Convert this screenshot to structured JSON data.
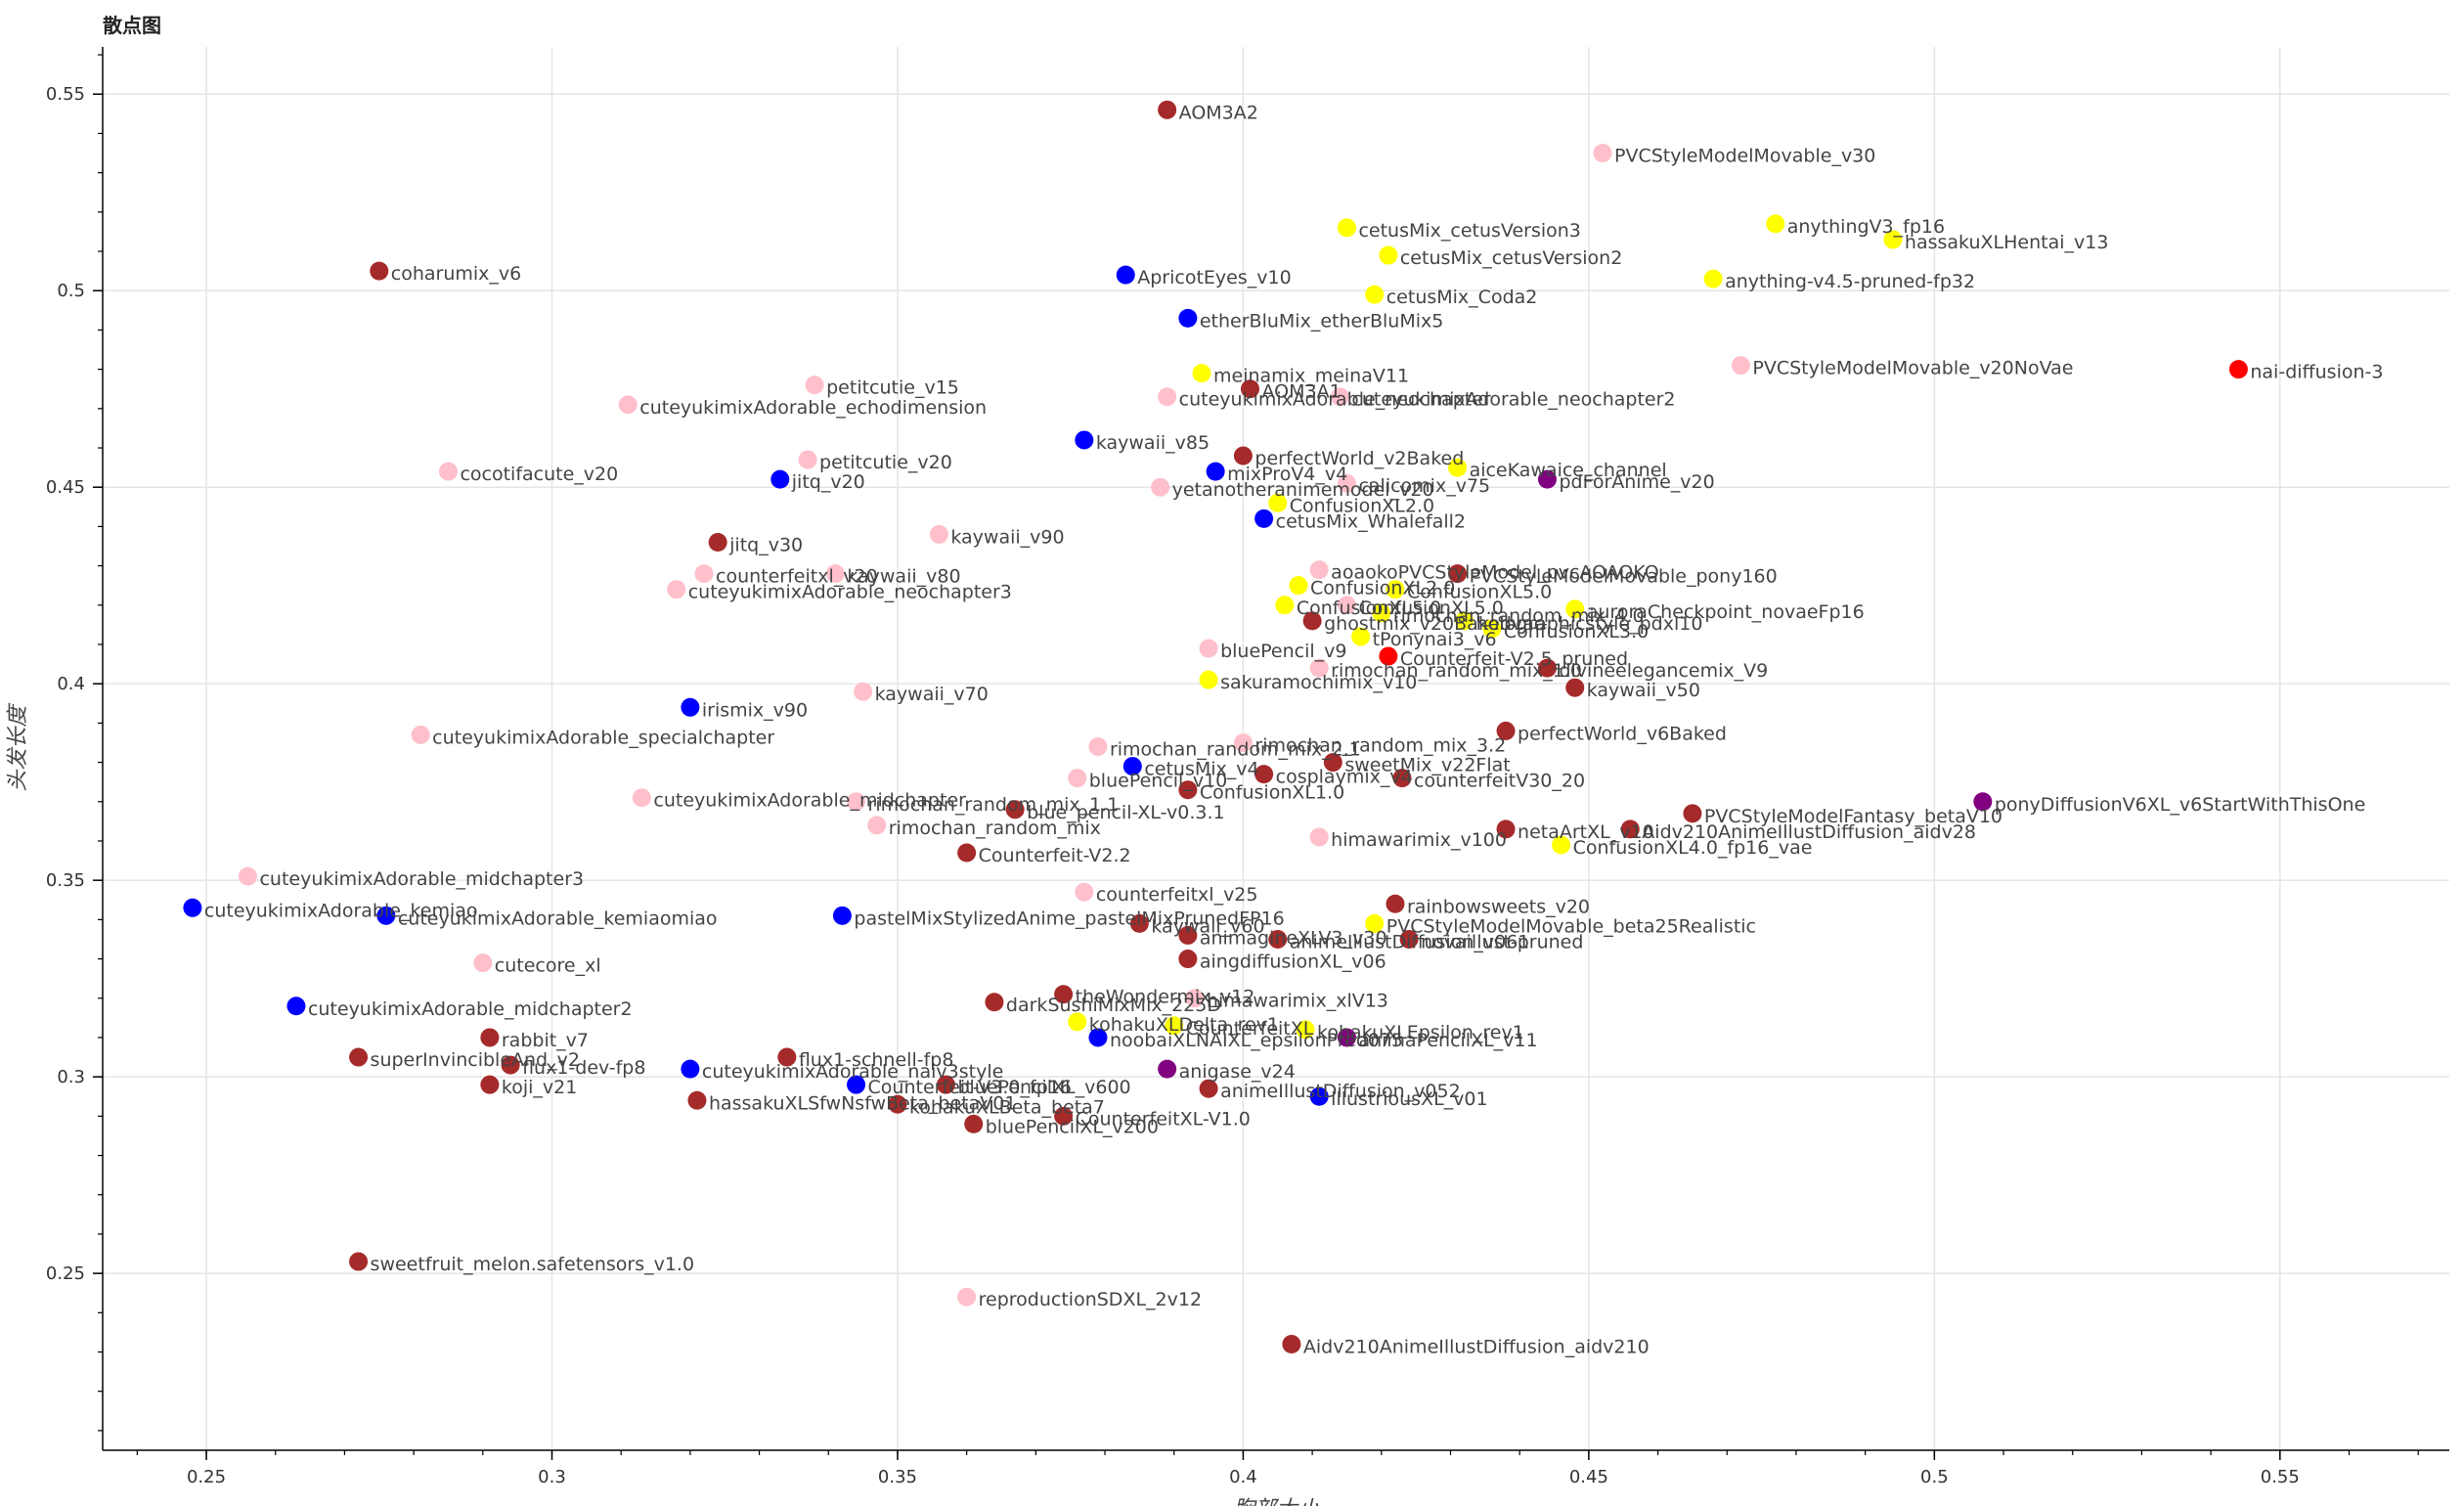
{
  "title": "散点图",
  "chart_data": {
    "type": "scatter",
    "title": "散点图",
    "xlabel": "胸部大小",
    "ylabel": "头发长度",
    "xlim": [
      0.235,
      0.5745
    ],
    "ylim": [
      0.205,
      0.562
    ],
    "xticks": [
      0.25,
      0.3,
      0.35,
      0.4,
      0.45,
      0.5,
      0.55
    ],
    "xtick_labels": [
      "0.25",
      "0.3",
      "0.35",
      "0.4",
      "0.45",
      "0.5",
      "0.55"
    ],
    "yticks": [
      0.25,
      0.3,
      0.35,
      0.4,
      0.45,
      0.5,
      0.55
    ],
    "ytick_labels": [
      "0.25",
      "0.3",
      "0.35",
      "0.4",
      "0.45",
      "0.5",
      "0.55"
    ],
    "grid": true,
    "colors": {
      "brown": "#a52a2a",
      "blue": "#0000ff",
      "pink": "#ffc0cb",
      "yellow": "#ffff00",
      "red": "#ff0000",
      "purple": "#800080"
    },
    "points": [
      {
        "label": "AOM3A2",
        "x": 0.389,
        "y": 0.546,
        "color": "brown"
      },
      {
        "label": "PVCStyleModelMovable_v30",
        "x": 0.452,
        "y": 0.535,
        "color": "pink"
      },
      {
        "label": "cetusMix_cetusVersion3",
        "x": 0.415,
        "y": 0.516,
        "color": "yellow"
      },
      {
        "label": "anythingV3_fp16",
        "x": 0.477,
        "y": 0.517,
        "color": "yellow"
      },
      {
        "label": "hassakuXLHentai_v13",
        "x": 0.494,
        "y": 0.513,
        "color": "yellow"
      },
      {
        "label": "cetusMix_cetusVersion2",
        "x": 0.421,
        "y": 0.509,
        "color": "yellow"
      },
      {
        "label": "coharumix_v6",
        "x": 0.275,
        "y": 0.505,
        "color": "brown"
      },
      {
        "label": "ApricotEyes_v10",
        "x": 0.383,
        "y": 0.504,
        "color": "blue"
      },
      {
        "label": "anything-v4.5-pruned-fp32",
        "x": 0.468,
        "y": 0.503,
        "color": "yellow"
      },
      {
        "label": "cetusMix_Coda2",
        "x": 0.419,
        "y": 0.499,
        "color": "yellow"
      },
      {
        "label": "etherBluMix_etherBluMix5",
        "x": 0.392,
        "y": 0.493,
        "color": "blue"
      },
      {
        "label": "PVCStyleModelMovable_v20NoVae",
        "x": 0.472,
        "y": 0.481,
        "color": "pink"
      },
      {
        "label": "nai-diffusion-3",
        "x": 0.544,
        "y": 0.48,
        "color": "red"
      },
      {
        "label": "meinamix_meinaV11",
        "x": 0.394,
        "y": 0.479,
        "color": "yellow"
      },
      {
        "label": "petitcutie_v15",
        "x": 0.338,
        "y": 0.476,
        "color": "pink"
      },
      {
        "label": "AOM3A1",
        "x": 0.401,
        "y": 0.475,
        "color": "brown"
      },
      {
        "label": "cuteyukimixAdorable_echodimension",
        "x": 0.311,
        "y": 0.471,
        "color": "pink"
      },
      {
        "label": "cuteyukimixAdorable_neochapter",
        "x": 0.389,
        "y": 0.473,
        "color": "pink"
      },
      {
        "label": "cuteyukimixAdorable_neochapter2",
        "x": 0.414,
        "y": 0.473,
        "color": "pink"
      },
      {
        "label": "kaywaii_v85",
        "x": 0.377,
        "y": 0.462,
        "color": "blue"
      },
      {
        "label": "perfectWorld_v2Baked",
        "x": 0.4,
        "y": 0.458,
        "color": "brown"
      },
      {
        "label": "petitcutie_v20",
        "x": 0.337,
        "y": 0.457,
        "color": "pink"
      },
      {
        "label": "aiceKawaice_channel",
        "x": 0.431,
        "y": 0.455,
        "color": "yellow"
      },
      {
        "label": "cocotifacute_v20",
        "x": 0.285,
        "y": 0.454,
        "color": "pink"
      },
      {
        "label": "mixProV4_v4",
        "x": 0.396,
        "y": 0.454,
        "color": "blue"
      },
      {
        "label": "jitq_v20",
        "x": 0.333,
        "y": 0.452,
        "color": "blue"
      },
      {
        "label": "pdForAnime_v20",
        "x": 0.444,
        "y": 0.452,
        "color": "purple"
      },
      {
        "label": "calicomix_v75",
        "x": 0.415,
        "y": 0.451,
        "color": "pink"
      },
      {
        "label": "yetanotheranimemodel_v20",
        "x": 0.388,
        "y": 0.45,
        "color": "pink"
      },
      {
        "label": "ConfusionXL2.0",
        "x": 0.405,
        "y": 0.446,
        "color": "yellow"
      },
      {
        "label": "cetusMix_Whalefall2",
        "x": 0.403,
        "y": 0.442,
        "color": "blue"
      },
      {
        "label": "kaywaii_v90",
        "x": 0.356,
        "y": 0.438,
        "color": "pink"
      },
      {
        "label": "jitq_v30",
        "x": 0.324,
        "y": 0.436,
        "color": "brown"
      },
      {
        "label": "aoaokoPVCStyleModel_pvcAOAOKO",
        "x": 0.411,
        "y": 0.429,
        "color": "pink"
      },
      {
        "label": "PVCStyleModelMovable_pony160",
        "x": 0.431,
        "y": 0.428,
        "color": "brown"
      },
      {
        "label": "kaywaii_v80",
        "x": 0.341,
        "y": 0.428,
        "color": "pink"
      },
      {
        "label": "counterfeitxl_v20",
        "x": 0.322,
        "y": 0.428,
        "color": "pink"
      },
      {
        "label": "ConfusionXL2.0",
        "x": 0.408,
        "y": 0.425,
        "color": "yellow"
      },
      {
        "label": "ConfusionXL5.0",
        "x": 0.422,
        "y": 0.424,
        "color": "yellow"
      },
      {
        "label": "cuteyukimixAdorable_neochapter3",
        "x": 0.318,
        "y": 0.424,
        "color": "pink"
      },
      {
        "label": "ConfusionXL5.0",
        "x": 0.406,
        "y": 0.42,
        "color": "yellow"
      },
      {
        "label": "ConfusionXL5.0",
        "x": 0.415,
        "y": 0.42,
        "color": "pink"
      },
      {
        "label": "rimochan_random_mix_4.0",
        "x": 0.42,
        "y": 0.418,
        "color": "yellow"
      },
      {
        "label": "auroraCheckpoint_novaeFp16",
        "x": 0.448,
        "y": 0.419,
        "color": "yellow"
      },
      {
        "label": "ghostmix_v20Bakedvae",
        "x": 0.41,
        "y": 0.416,
        "color": "brown"
      },
      {
        "label": "holographicstyle_pdxl10",
        "x": 0.432,
        "y": 0.416,
        "color": "yellow"
      },
      {
        "label": "tPonynai3_v6",
        "x": 0.417,
        "y": 0.412,
        "color": "yellow"
      },
      {
        "label": "ConfusionXL3.0",
        "x": 0.436,
        "y": 0.414,
        "color": "yellow"
      },
      {
        "label": "bluePencil_v9",
        "x": 0.395,
        "y": 0.409,
        "color": "pink"
      },
      {
        "label": "Counterfeit-V2.5_pruned",
        "x": 0.421,
        "y": 0.407,
        "color": "red"
      },
      {
        "label": "rimochan_random_mix_1.0",
        "x": 0.411,
        "y": 0.404,
        "color": "pink"
      },
      {
        "label": "divineelegancemix_V9",
        "x": 0.444,
        "y": 0.404,
        "color": "brown"
      },
      {
        "label": "sakuramochimix_v10",
        "x": 0.395,
        "y": 0.401,
        "color": "yellow"
      },
      {
        "label": "kaywaii_v50",
        "x": 0.448,
        "y": 0.399,
        "color": "brown"
      },
      {
        "label": "kaywaii_v70",
        "x": 0.345,
        "y": 0.398,
        "color": "pink"
      },
      {
        "label": "irismix_v90",
        "x": 0.32,
        "y": 0.394,
        "color": "blue"
      },
      {
        "label": "perfectWorld_v6Baked",
        "x": 0.438,
        "y": 0.388,
        "color": "brown"
      },
      {
        "label": "cuteyukimixAdorable_specialchapter",
        "x": 0.281,
        "y": 0.387,
        "color": "pink"
      },
      {
        "label": "rimochan_random_mix_2.1",
        "x": 0.379,
        "y": 0.384,
        "color": "pink"
      },
      {
        "label": "rimochan_random_mix_3.2",
        "x": 0.4,
        "y": 0.385,
        "color": "pink"
      },
      {
        "label": "sweetMix_v22Flat",
        "x": 0.413,
        "y": 0.38,
        "color": "brown"
      },
      {
        "label": "cetusMix_v4",
        "x": 0.384,
        "y": 0.379,
        "color": "blue"
      },
      {
        "label": "cosplaymix_v4",
        "x": 0.403,
        "y": 0.377,
        "color": "brown"
      },
      {
        "label": "counterfeitV30_20",
        "x": 0.423,
        "y": 0.376,
        "color": "brown"
      },
      {
        "label": "bluePencil_v10",
        "x": 0.376,
        "y": 0.376,
        "color": "pink"
      },
      {
        "label": "ConfusionXL1.0",
        "x": 0.392,
        "y": 0.373,
        "color": "brown"
      },
      {
        "label": "ponyDiffusionV6XL_v6StartWithThisOne",
        "x": 0.507,
        "y": 0.37,
        "color": "purple"
      },
      {
        "label": "cuteyukimixAdorable_midchapter",
        "x": 0.313,
        "y": 0.371,
        "color": "pink"
      },
      {
        "label": "rimochan_random_mix_1.1",
        "x": 0.344,
        "y": 0.37,
        "color": "pink"
      },
      {
        "label": "blue_pencil-XL-v0.3.1",
        "x": 0.367,
        "y": 0.368,
        "color": "brown"
      },
      {
        "label": "PVCStyleModelFantasy_betaV10",
        "x": 0.465,
        "y": 0.367,
        "color": "brown"
      },
      {
        "label": "rimochan_random_mix",
        "x": 0.347,
        "y": 0.364,
        "color": "pink"
      },
      {
        "label": "netaArtXL_v10",
        "x": 0.438,
        "y": 0.363,
        "color": "brown"
      },
      {
        "label": "Aidv210AnimeIllustDiffusion_aidv28",
        "x": 0.456,
        "y": 0.363,
        "color": "brown"
      },
      {
        "label": "himawarimix_v100",
        "x": 0.411,
        "y": 0.361,
        "color": "pink"
      },
      {
        "label": "ConfusionXL4.0_fp16_vae",
        "x": 0.446,
        "y": 0.359,
        "color": "yellow"
      },
      {
        "label": "Counterfeit-V2.2",
        "x": 0.36,
        "y": 0.357,
        "color": "brown"
      },
      {
        "label": "cuteyukimixAdorable_midchapter3",
        "x": 0.256,
        "y": 0.351,
        "color": "pink"
      },
      {
        "label": "counterfeitxl_v25",
        "x": 0.377,
        "y": 0.347,
        "color": "pink"
      },
      {
        "label": "rainbowsweets_v20",
        "x": 0.422,
        "y": 0.344,
        "color": "brown"
      },
      {
        "label": "cuteyukimixAdorable_kemiao",
        "x": 0.248,
        "y": 0.343,
        "color": "blue"
      },
      {
        "label": "cuteyukimixAdorable_kemiaomiao",
        "x": 0.276,
        "y": 0.341,
        "color": "blue"
      },
      {
        "label": "pastelMixStylizedAnime_pastelMixPrunedFP16",
        "x": 0.342,
        "y": 0.341,
        "color": "blue"
      },
      {
        "label": "PVCStyleModelMovable_beta25Realistic",
        "x": 0.419,
        "y": 0.339,
        "color": "yellow"
      },
      {
        "label": "kaywaii_v60",
        "x": 0.385,
        "y": 0.339,
        "color": "brown"
      },
      {
        "label": "animagineXLV3_v30",
        "x": 0.392,
        "y": 0.336,
        "color": "brown"
      },
      {
        "label": "animeIllustDiffusion_v061",
        "x": 0.405,
        "y": 0.335,
        "color": "brown"
      },
      {
        "label": "novaillust-pruned",
        "x": 0.424,
        "y": 0.335,
        "color": "brown"
      },
      {
        "label": "aingdiffusionXL_v06",
        "x": 0.392,
        "y": 0.33,
        "color": "brown"
      },
      {
        "label": "cutecore_xl",
        "x": 0.29,
        "y": 0.329,
        "color": "pink"
      },
      {
        "label": "theWondermix_v12",
        "x": 0.374,
        "y": 0.321,
        "color": "brown"
      },
      {
        "label": "himawarimix_xlV13",
        "x": 0.393,
        "y": 0.32,
        "color": "pink"
      },
      {
        "label": "darkSushiMixMix_225D",
        "x": 0.364,
        "y": 0.319,
        "color": "brown"
      },
      {
        "label": "cuteyukimixAdorable_midchapter2",
        "x": 0.263,
        "y": 0.318,
        "color": "blue"
      },
      {
        "label": "kohakuXLDelta_rev1",
        "x": 0.376,
        "y": 0.314,
        "color": "yellow"
      },
      {
        "label": "CounterfeitXL",
        "x": 0.39,
        "y": 0.313,
        "color": "yellow"
      },
      {
        "label": "noobaiXLNAIXL_epsilonPred075",
        "x": 0.379,
        "y": 0.31,
        "color": "blue"
      },
      {
        "label": "kohakuXLEpsilon_rev1",
        "x": 0.409,
        "y": 0.312,
        "color": "yellow"
      },
      {
        "label": "animaPencilXL_v11",
        "x": 0.415,
        "y": 0.31,
        "color": "purple"
      },
      {
        "label": "rabbit_v7",
        "x": 0.291,
        "y": 0.31,
        "color": "brown"
      },
      {
        "label": "superInvincibleAnd_v2",
        "x": 0.272,
        "y": 0.305,
        "color": "brown"
      },
      {
        "label": "flux1-schnell-fp8",
        "x": 0.334,
        "y": 0.305,
        "color": "brown"
      },
      {
        "label": "flux1-dev-fp8",
        "x": 0.294,
        "y": 0.303,
        "color": "brown"
      },
      {
        "label": "anigase_v24",
        "x": 0.389,
        "y": 0.302,
        "color": "purple"
      },
      {
        "label": "cuteyukimixAdorable_naiv3style",
        "x": 0.32,
        "y": 0.302,
        "color": "blue"
      },
      {
        "label": "koji_v21",
        "x": 0.291,
        "y": 0.298,
        "color": "brown"
      },
      {
        "label": "Counterfeit-V3.0_fp16",
        "x": 0.344,
        "y": 0.298,
        "color": "blue"
      },
      {
        "label": "bluePencilXL_v600",
        "x": 0.357,
        "y": 0.298,
        "color": "brown"
      },
      {
        "label": "animeIllustDiffusion_v052",
        "x": 0.395,
        "y": 0.297,
        "color": "brown"
      },
      {
        "label": "illustriousXL_v01",
        "x": 0.411,
        "y": 0.295,
        "color": "blue"
      },
      {
        "label": "hassakuXLSfwNsfwBeta_betaV01",
        "x": 0.321,
        "y": 0.294,
        "color": "brown"
      },
      {
        "label": "kohakuXLBeta_beta7",
        "x": 0.35,
        "y": 0.293,
        "color": "brown"
      },
      {
        "label": "bluePencilXL_v200",
        "x": 0.361,
        "y": 0.288,
        "color": "brown"
      },
      {
        "label": "CounterfeitXL-V1.0",
        "x": 0.374,
        "y": 0.29,
        "color": "brown"
      },
      {
        "label": "sweetfruit_melon.safetensors_v1.0",
        "x": 0.272,
        "y": 0.253,
        "color": "brown"
      },
      {
        "label": "reproductionSDXL_2v12",
        "x": 0.36,
        "y": 0.244,
        "color": "pink"
      },
      {
        "label": "Aidv210AnimeIllustDiffusion_aidv210",
        "x": 0.407,
        "y": 0.232,
        "color": "brown"
      }
    ]
  }
}
